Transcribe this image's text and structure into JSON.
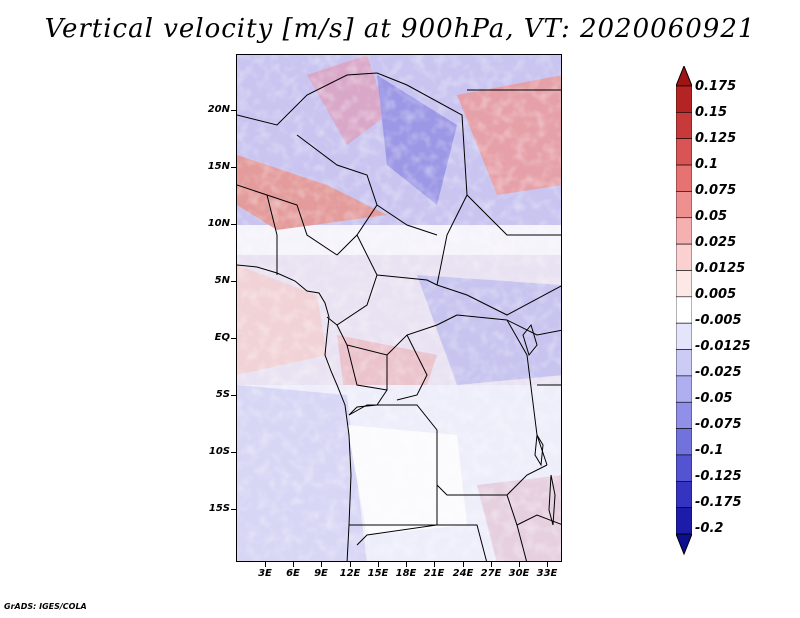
{
  "title": "Vertical velocity [m/s] at 900hPa, VT: 2020060921",
  "credit": "GrADS: IGES/COLA",
  "map": {
    "lat_labels": [
      "20N",
      "15N",
      "10N",
      "5N",
      "EQ",
      "5S",
      "10S",
      "15S"
    ],
    "lon_labels": [
      "3E",
      "6E",
      "9E",
      "12E",
      "15E",
      "18E",
      "21E",
      "24E",
      "27E",
      "30E",
      "33E"
    ],
    "lat_range": [
      -20.5,
      24.0
    ],
    "lon_range": [
      0.0,
      34.5
    ]
  },
  "colorbar": {
    "levels": [
      "0.175",
      "0.15",
      "0.125",
      "0.1",
      "0.075",
      "0.05",
      "0.025",
      "0.0125",
      "0.005",
      "-0.005",
      "-0.0125",
      "-0.025",
      "-0.05",
      "-0.075",
      "-0.1",
      "-0.125",
      "-0.175",
      "-0.2"
    ],
    "colors": [
      "#a01414",
      "#b52424",
      "#c83a3a",
      "#d95454",
      "#e67272",
      "#ef9090",
      "#f6b0b0",
      "#fbd0d0",
      "#fde8e8",
      "#ffffff",
      "#e4e4fb",
      "#cbcbf6",
      "#aeaef0",
      "#9090e8",
      "#7272de",
      "#5454d2",
      "#3434c0",
      "#1c1ca8",
      "#0e0e90"
    ]
  }
}
